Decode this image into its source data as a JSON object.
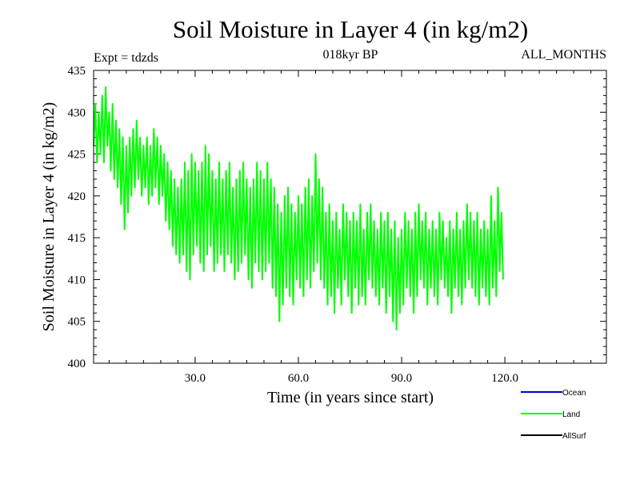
{
  "chart_data": {
    "type": "line",
    "title": "Soil Moisture in Layer 4 (in kg/m2)",
    "subtitle": "018kyr BP",
    "left_note": "Expt = tdzds",
    "right_note": "ALL_MONTHS",
    "xlabel": "Time (in years since start)",
    "ylabel": "Soil Moisture in Layer 4 (in kg/m2)",
    "xlim": [
      0.5,
      149.5
    ],
    "ylim": [
      400,
      435
    ],
    "x_ticks": [
      30,
      60,
      90,
      120
    ],
    "x_tick_labels": [
      "30.0",
      "60.0",
      "90.0",
      "120.0"
    ],
    "y_ticks": [
      400,
      405,
      410,
      415,
      420,
      425,
      430,
      435
    ],
    "y_tick_labels": [
      "400",
      "405",
      "410",
      "415",
      "420",
      "425",
      "430",
      "435"
    ],
    "legend_position": "bottom-right",
    "legend": [
      {
        "name": "Ocean",
        "color": "#0000cc"
      },
      {
        "name": "Land",
        "color": "#00ff00"
      },
      {
        "name": "AllSurf",
        "color": "#000000"
      }
    ],
    "series": [
      {
        "name": "Land",
        "color": "#00ff00",
        "x_start": 0.5,
        "x_step": 0.5,
        "values": [
          426,
          431,
          424,
          430,
          425,
          432,
          424,
          433,
          426,
          430,
          423,
          431,
          422,
          429,
          421,
          428,
          419,
          427,
          416,
          426,
          418,
          427,
          420,
          428,
          421,
          429,
          422,
          427,
          420,
          426,
          421,
          427,
          419,
          426,
          420,
          428,
          421,
          427,
          419,
          426,
          420,
          425,
          417,
          424,
          416,
          423,
          414,
          422,
          413,
          421,
          412,
          422,
          413,
          424,
          411,
          423,
          410,
          425,
          413,
          424,
          414,
          423,
          412,
          424,
          411,
          426,
          413,
          425,
          414,
          423,
          411,
          422,
          412,
          424,
          413,
          422,
          411,
          423,
          413,
          424,
          412,
          421,
          410,
          422,
          411,
          423,
          412,
          424,
          413,
          422,
          410,
          421,
          409,
          422,
          412,
          424,
          411,
          423,
          410,
          422,
          411,
          424,
          412,
          422,
          409,
          421,
          408,
          419,
          405,
          418,
          407,
          420,
          409,
          421,
          408,
          419,
          407,
          418,
          410,
          420,
          409,
          419,
          408,
          421,
          410,
          422,
          409,
          420,
          411,
          425,
          412,
          422,
          410,
          421,
          409,
          418,
          407,
          419,
          408,
          417,
          406,
          418,
          409,
          416,
          407,
          419,
          410,
          418,
          408,
          417,
          406,
          418,
          409,
          417,
          407,
          419,
          408,
          416,
          407,
          418,
          410,
          419,
          409,
          417,
          408,
          416,
          407,
          418,
          409,
          417,
          406,
          418,
          408,
          416,
          405,
          417,
          404,
          415,
          406,
          416,
          407,
          418,
          409,
          417,
          408,
          416,
          406,
          418,
          408,
          419,
          410,
          417,
          409,
          418,
          407,
          416,
          409,
          417,
          408,
          416,
          407,
          418,
          410,
          417,
          409,
          415,
          408,
          417,
          406,
          416,
          409,
          418,
          408,
          416,
          407,
          417,
          409,
          419,
          410,
          418,
          409,
          417,
          408,
          418,
          407,
          416,
          409,
          417,
          408,
          416,
          407,
          420,
          409,
          417,
          408,
          421,
          411,
          418,
          410
        ]
      }
    ]
  }
}
